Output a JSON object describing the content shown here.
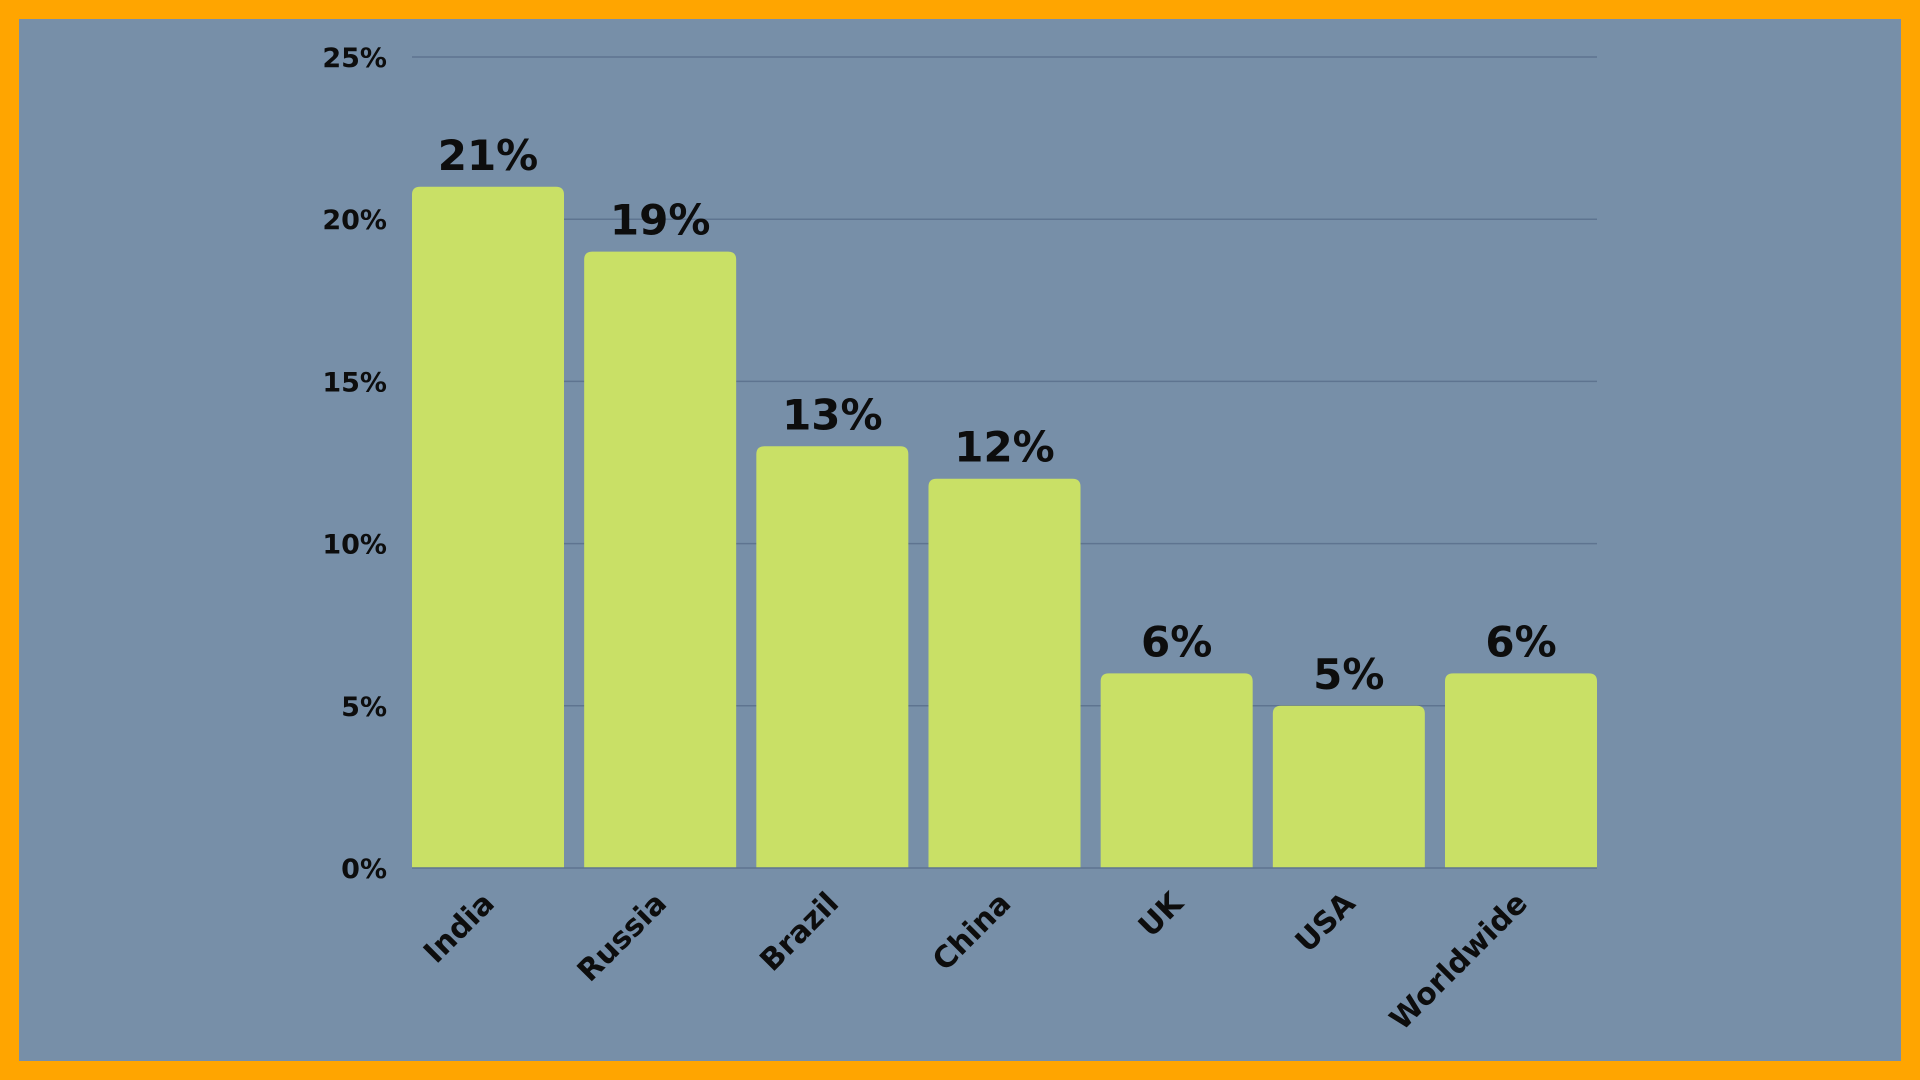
{
  "chart_data": {
    "type": "bar",
    "categories": [
      "India",
      "Russia",
      "Brazil",
      "China",
      "UK",
      "USA",
      "Worldwide"
    ],
    "values": [
      21,
      19,
      13,
      12,
      6,
      5,
      6
    ],
    "data_labels": [
      "21%",
      "19%",
      "13%",
      "12%",
      "6%",
      "5%",
      "6%"
    ],
    "y_ticks": [
      0,
      5,
      10,
      15,
      20,
      25
    ],
    "y_tick_labels": [
      "0%",
      "5%",
      "10%",
      "15%",
      "20%",
      "25%"
    ],
    "ylim": [
      0,
      25
    ],
    "grid": true,
    "title": "",
    "xlabel": "",
    "ylabel": ""
  },
  "colors": {
    "border": "#FFA500",
    "background": "#778FA8",
    "bar": "#C9E066",
    "gridline": "#5E7490",
    "text": "#0D0D0D"
  }
}
